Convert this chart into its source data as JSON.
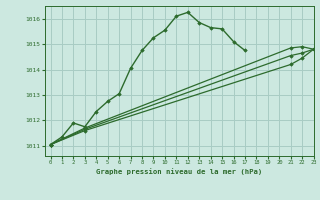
{
  "title": "Graphe pression niveau de la mer (hPa)",
  "background_color": "#cce8e0",
  "grid_color": "#a8ccc4",
  "line_color": "#2d6b2d",
  "xlim": [
    -0.5,
    23
  ],
  "ylim": [
    1010.6,
    1016.5
  ],
  "yticks": [
    1011,
    1012,
    1013,
    1014,
    1015,
    1016
  ],
  "xticks": [
    0,
    1,
    2,
    3,
    4,
    5,
    6,
    7,
    8,
    9,
    10,
    11,
    12,
    13,
    14,
    15,
    16,
    17,
    18,
    19,
    20,
    21,
    22,
    23
  ],
  "series": [
    {
      "x": [
        0,
        1,
        2,
        3,
        4,
        5,
        6,
        7,
        8,
        9,
        10,
        11,
        12,
        13,
        14,
        15,
        16,
        17
      ],
      "y": [
        1011.05,
        1011.35,
        1011.9,
        1011.75,
        1012.35,
        1012.75,
        1013.05,
        1014.05,
        1014.75,
        1015.25,
        1015.55,
        1016.1,
        1016.25,
        1015.85,
        1015.65,
        1015.6,
        1015.1,
        1014.75
      ],
      "marker": "D",
      "markersize": 1.8,
      "linewidth": 1.0
    },
    {
      "x": [
        0,
        3,
        21,
        22,
        23
      ],
      "y": [
        1011.05,
        1011.7,
        1014.85,
        1014.9,
        1014.8
      ],
      "marker": "D",
      "markersize": 1.8,
      "linewidth": 0.9
    },
    {
      "x": [
        0,
        3,
        21,
        22,
        23
      ],
      "y": [
        1011.05,
        1011.65,
        1014.55,
        1014.65,
        1014.8
      ],
      "marker": "D",
      "markersize": 1.8,
      "linewidth": 0.9
    },
    {
      "x": [
        0,
        3,
        21,
        22,
        23
      ],
      "y": [
        1011.05,
        1011.6,
        1014.2,
        1014.45,
        1014.8
      ],
      "marker": "D",
      "markersize": 1.8,
      "linewidth": 0.9
    }
  ]
}
